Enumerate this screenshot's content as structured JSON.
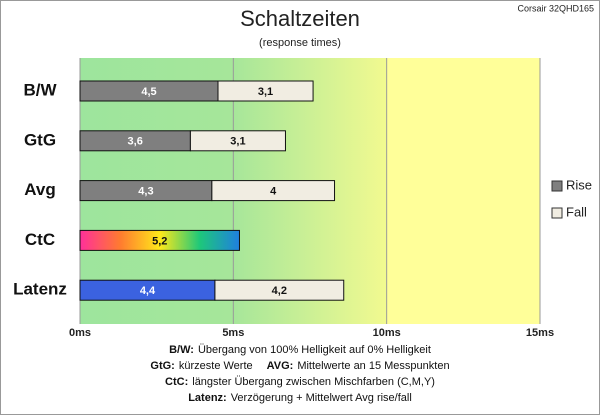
{
  "chart_data": {
    "type": "stacked-barh",
    "title": "Schaltzeiten",
    "subtitle": "(response times)",
    "corner_note": "Corsair 32QHD165",
    "categories": [
      "B/W",
      "GtG",
      "Avg",
      "CtC",
      "Latenz"
    ],
    "series": [
      {
        "name": "Rise",
        "color": "#7f7f7f",
        "colors": [
          "#7f7f7f",
          "#7f7f7f",
          "#7f7f7f",
          [
            "#ff2f9a",
            "#ff7a30",
            "#ffe81a",
            "#1ec87a",
            "#1f7fe0"
          ],
          "#3b62e0"
        ],
        "values": [
          4.5,
          3.6,
          4.3,
          5.2,
          4.4
        ],
        "value_labels": [
          "4,5",
          "3,6",
          "4,3",
          "5,2",
          "4,4"
        ]
      },
      {
        "name": "Fall",
        "color": "#f1ede2",
        "values": [
          3.1,
          3.1,
          4,
          null,
          4.2
        ],
        "value_labels": [
          "3,1",
          "3,1",
          "4",
          null,
          "4,2"
        ]
      }
    ],
    "xlim": [
      0,
      15
    ],
    "xticks": [
      {
        "value": 0,
        "label": "0ms"
      },
      {
        "value": 5,
        "label": "5ms"
      },
      {
        "value": 10,
        "label": "10ms"
      },
      {
        "value": 15,
        "label": "15ms"
      }
    ],
    "grid": true,
    "legend": "right",
    "notes": [
      [
        {
          "key": "B/W:",
          "text": "Übergang von 100% Helligkeit auf 0% Helligkeit"
        }
      ],
      [
        {
          "key": "GtG:",
          "text": "kürzeste Werte"
        },
        {
          "key": "AVG:",
          "text": "Mittelwerte an 15 Messpunkten"
        }
      ],
      [
        {
          "key": "CtC:",
          "text": "längster Übergang zwischen Mischfarben (C,M,Y)"
        }
      ],
      [
        {
          "key": "Latenz:",
          "text": "Verzögerung + Mittelwert Avg rise/fall"
        }
      ]
    ]
  }
}
